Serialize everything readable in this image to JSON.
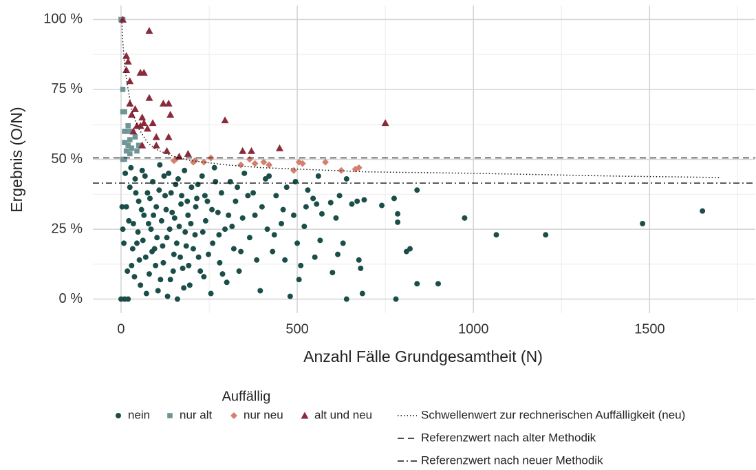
{
  "chart_data": {
    "type": "scatter",
    "xlabel": "Anzahl Fälle Grundgesamtheit (N)",
    "ylabel": "Ergebnis (O/N)",
    "legend_title": "Auffällig",
    "xlim": [
      -80,
      1800
    ],
    "ylim": [
      -5,
      105
    ],
    "xticks": [
      0,
      500,
      1000,
      1500
    ],
    "yticks": [
      {
        "value": 0,
        "label": "0 %"
      },
      {
        "value": 25,
        "label": "25 %"
      },
      {
        "value": 50,
        "label": "50 %"
      },
      {
        "value": 75,
        "label": "75 %"
      },
      {
        "value": 100,
        "label": "100 %"
      }
    ],
    "xminorticks": [
      250,
      750,
      1250,
      1750
    ],
    "yminorticks": [
      12.5,
      37.5,
      62.5,
      87.5
    ],
    "grid": true,
    "series": [
      {
        "name": "nein",
        "color": "#1b4e48",
        "marker": "circle",
        "x": [
          1650,
          1480,
          1205,
          1065,
          975,
          900,
          840,
          840,
          820,
          810,
          785,
          785,
          775,
          780,
          740,
          690,
          685,
          675,
          680,
          670,
          640,
          655,
          640,
          630,
          615,
          610,
          620,
          600,
          595,
          570,
          565,
          555,
          545,
          530,
          520,
          510,
          505,
          500,
          495,
          480,
          470,
          460,
          455,
          440,
          430,
          420,
          415,
          400,
          395,
          385,
          375,
          365,
          350,
          345,
          335,
          325,
          320,
          310,
          300,
          295,
          285,
          280,
          275,
          265,
          260,
          255,
          245,
          240,
          235,
          230,
          220,
          215,
          210,
          200,
          195,
          190,
          185,
          180,
          175,
          170,
          165,
          160,
          155,
          150,
          145,
          140,
          135,
          130,
          125,
          120,
          115,
          110,
          105,
          100,
          95,
          90,
          85,
          80,
          75,
          70,
          65,
          60,
          55,
          50,
          45,
          40,
          35,
          30,
          25,
          20,
          15,
          10,
          5,
          0,
          3,
          8,
          12,
          18,
          22,
          28,
          33,
          38,
          42,
          48,
          52,
          58,
          62,
          68,
          72,
          78,
          82,
          88,
          92,
          98,
          102,
          108,
          112,
          118,
          122,
          128,
          132,
          138,
          142,
          148,
          152,
          158,
          162,
          168,
          172,
          178,
          182,
          188,
          192,
          198,
          205,
          212,
          218,
          225,
          232,
          238,
          248,
          258,
          268,
          278,
          288,
          305,
          315,
          330,
          340,
          360,
          380,
          410,
          435,
          465,
          490,
          525,
          550,
          560
        ],
        "values": [
          31.5,
          27,
          23,
          23,
          29,
          5.5,
          5.5,
          39,
          18,
          17,
          27.5,
          30.5,
          36,
          0,
          33.5,
          35.5,
          2,
          14,
          11,
          35,
          0,
          34,
          43,
          20,
          16,
          29,
          37,
          9.5,
          34.5,
          30.5,
          21,
          34,
          36,
          39,
          26,
          12,
          7,
          20,
          42,
          1,
          40,
          32,
          27,
          37,
          17,
          44,
          25,
          33,
          3,
          14,
          38,
          22,
          45,
          29,
          10,
          35,
          18,
          42,
          6,
          25,
          38,
          13,
          31,
          47,
          20,
          2,
          35,
          28,
          8,
          44,
          15,
          36,
          23,
          40,
          5,
          30,
          19,
          46,
          11,
          34,
          26,
          0,
          41,
          16,
          31,
          7,
          45,
          22,
          37,
          13,
          28,
          48,
          3,
          33,
          18,
          42,
          25,
          9,
          38,
          15,
          30,
          46,
          5,
          35,
          20,
          43,
          27,
          12,
          40,
          0,
          33,
          0,
          25,
          0,
          33,
          20,
          45,
          10,
          28,
          47,
          18,
          8,
          38,
          24,
          14,
          32,
          21,
          44,
          2,
          27,
          36,
          17,
          30,
          12,
          22,
          39,
          7,
          19,
          44,
          32,
          1,
          25,
          38,
          10,
          29,
          20,
          43,
          15,
          37,
          4,
          24,
          35,
          12,
          27,
          18,
          33,
          41,
          10,
          24,
          37,
          16,
          32,
          42,
          23,
          9,
          30,
          26,
          40,
          17,
          37,
          30,
          43,
          23,
          14,
          30,
          33,
          15,
          44
        ]
      },
      {
        "name": "nur alt",
        "color": "#6f9695",
        "marker": "square",
        "x": [
          0,
          5,
          5,
          5,
          10,
          10,
          15,
          10,
          15,
          20,
          25,
          25,
          30,
          30,
          40,
          45,
          50,
          5,
          10,
          20
        ],
        "values": [
          100,
          100,
          75,
          67,
          67,
          60,
          60,
          56,
          53,
          55,
          57,
          52,
          54,
          60,
          58,
          53,
          55,
          50,
          50,
          62
        ]
      },
      {
        "name": "nur neu",
        "color": "#d4806e",
        "marker": "diamond",
        "x": [
          155,
          210,
          235,
          255,
          340,
          365,
          380,
          405,
          420,
          490,
          505,
          515,
          580,
          625,
          665,
          675,
          205,
          150
        ],
        "values": [
          50,
          49.5,
          49,
          50.5,
          48,
          50,
          48.5,
          49,
          48,
          46,
          49,
          48.5,
          49,
          46,
          46.5,
          47,
          49,
          49.5
        ]
      },
      {
        "name": "alt und neu",
        "color": "#8b2a3b",
        "marker": "triangle",
        "x": [
          5,
          15,
          20,
          25,
          80,
          55,
          65,
          80,
          40,
          60,
          90,
          120,
          135,
          140,
          45,
          55,
          65,
          75,
          30,
          35,
          100,
          135,
          130,
          165,
          190,
          295,
          345,
          370,
          450,
          750,
          60,
          100,
          25,
          15
        ],
        "values": [
          100,
          87,
          85,
          78,
          96,
          81,
          81,
          72,
          68,
          65,
          63,
          70,
          70,
          66,
          62,
          62,
          63,
          61,
          66,
          60,
          58,
          58,
          53,
          51,
          52,
          64,
          53,
          53,
          54,
          63,
          55,
          55,
          70,
          82
        ]
      }
    ],
    "threshold": {
      "name": "Schwellenwert zur rechnerischen Auffälligkeit (neu)",
      "style": "dotted",
      "x": [
        2,
        5,
        10,
        15,
        20,
        30,
        40,
        50,
        75,
        100,
        150,
        200,
        300,
        400,
        500,
        700,
        1000,
        1400,
        1700
      ],
      "values": [
        100,
        92,
        84,
        79,
        75,
        68,
        64,
        61,
        56,
        53.5,
        51,
        49.5,
        48,
        47,
        46.5,
        45.5,
        45,
        44,
        43.5
      ]
    },
    "reference_lines": [
      {
        "name": "Referenzwert nach alter Methodik",
        "value": 50.5,
        "style": "dashed"
      },
      {
        "name": "Referenzwert nach neuer Methodik",
        "value": 41.5,
        "style": "dashdot"
      }
    ]
  }
}
